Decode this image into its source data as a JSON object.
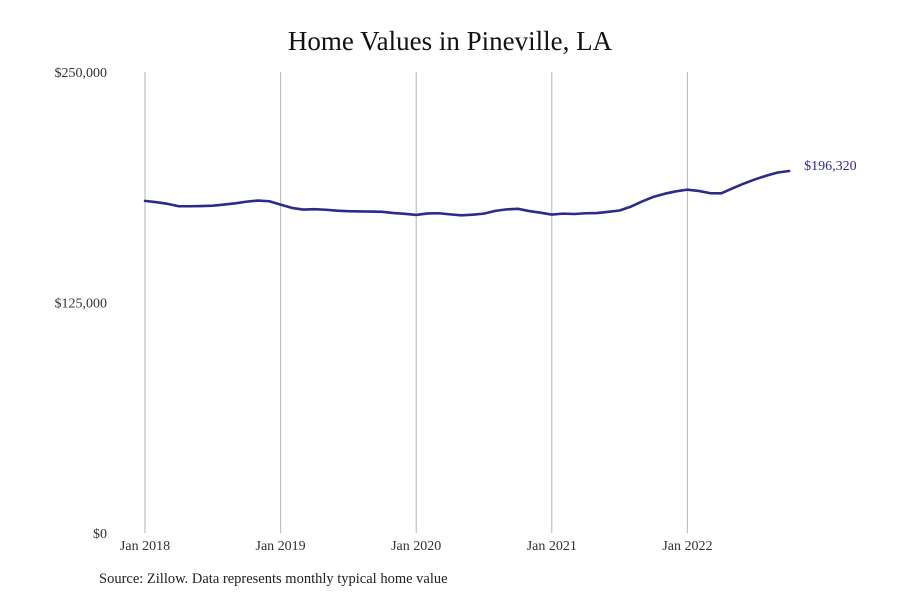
{
  "chart_data": {
    "type": "line",
    "title": "Home Values in Pineville, LA",
    "xlabel": "",
    "ylabel": "",
    "ylim": [
      0,
      250000
    ],
    "y_ticks": [
      0,
      125000,
      250000
    ],
    "y_tick_labels": [
      "$0",
      "$125,000",
      "$250,000"
    ],
    "x_tick_labels": [
      "Jan 2018",
      "Jan 2019",
      "Jan 2020",
      "Jan 2021",
      "Jan 2022"
    ],
    "grid": "vertical lines at January of each year",
    "x_start": "2018-01",
    "line_color": "#2e2a8c",
    "series": [
      {
        "values": [
          180100,
          179400,
          178500,
          177200,
          177200,
          177300,
          177500,
          178100,
          178800,
          179700,
          180300,
          179900,
          178100,
          176300,
          175400,
          175600,
          175300,
          174800,
          174500,
          174400,
          174300,
          174200,
          173500,
          173100,
          172500,
          173300,
          173400,
          172800,
          172300,
          172600,
          173200,
          174700,
          175500,
          175800,
          174600,
          173700,
          172700,
          173200,
          173000,
          173400,
          173500,
          174200,
          174900,
          177000,
          179800,
          182300,
          184000,
          185300,
          186200,
          185500,
          184300,
          184200,
          186900,
          189500,
          191800,
          193800,
          195500,
          196320
        ]
      }
    ],
    "end_label": "$196,320"
  },
  "source_text": "Source: Zillow. Data represents monthly typical home value"
}
